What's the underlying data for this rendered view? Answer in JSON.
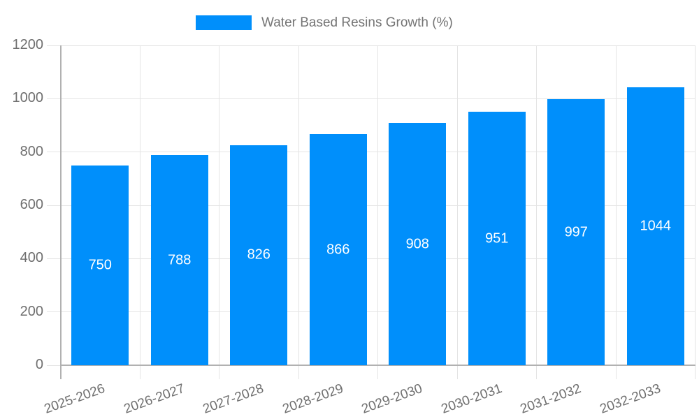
{
  "legend": {
    "label": "Water Based Resins Growth (%)"
  },
  "chart_data": {
    "type": "bar",
    "title": "Water Based Resins Growth (%)",
    "series_name": "Water Based Resins Growth (%)",
    "categories": [
      "2025-2026",
      "2026-2027",
      "2027-2028",
      "2028-2029",
      "2029-2030",
      "2030-2031",
      "2031-2032",
      "2032-2033"
    ],
    "values": [
      750,
      788,
      826,
      866,
      908,
      951,
      997,
      1044
    ],
    "data_labels_shown": true,
    "xlabel": "",
    "ylabel": "",
    "ylim": [
      0,
      1200
    ],
    "yticks": [
      0,
      200,
      400,
      600,
      800,
      1000,
      1200
    ],
    "grid": true,
    "legend_position": "top",
    "x_label_rotation_deg": -20
  },
  "colors": {
    "bar": "#008FFB",
    "axis_line": "#b1b1b1",
    "grid_line": "#e4e4e4",
    "axis_text": "#6f6f6f",
    "legend_text": "#757575",
    "data_label_text": "#ffffff",
    "background": "#ffffff"
  }
}
